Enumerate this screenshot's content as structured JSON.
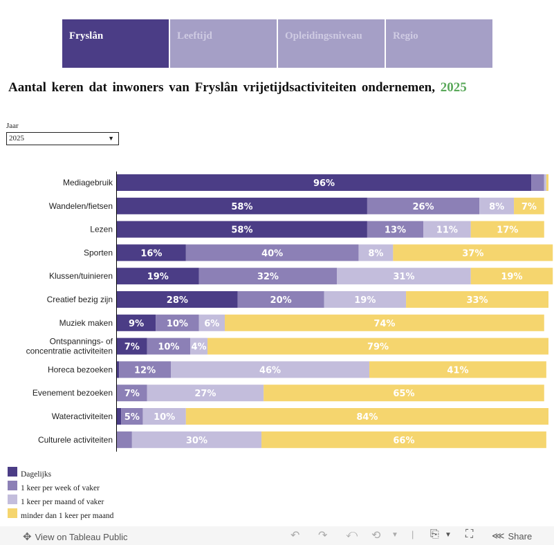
{
  "tabs": [
    {
      "label": "Fryslân",
      "active": true
    },
    {
      "label": "Leeftijd",
      "active": false
    },
    {
      "label": "Opleidingsniveau",
      "active": false
    },
    {
      "label": "Regio",
      "active": false
    }
  ],
  "title": {
    "text": "Aantal keren dat inwoners van Fryslân vrijetijdsactiviteiten ondernemen,",
    "year": "2025"
  },
  "filter": {
    "label": "Jaar",
    "value": "2025"
  },
  "colors": {
    "dagelijks": "#4b3d86",
    "week": "#8c80b6",
    "maand": "#c3bddc",
    "minder": "#f5d56e",
    "year_accent": "#5aa85a"
  },
  "chart_data": {
    "type": "bar",
    "orientation": "horizontal-stacked-100",
    "title": "Aantal keren dat inwoners van Fryslân vrijetijdsactiviteiten ondernemen, 2025",
    "xlabel": "",
    "ylabel": "",
    "xlim": [
      0,
      100
    ],
    "grid": false,
    "legend_position": "bottom-left",
    "categories": [
      "Mediagebruik",
      "Wandelen/fietsen",
      "Lezen",
      "Sporten",
      "Klussen/tuinieren",
      "Creatief bezig zijn",
      "Muziek maken",
      "Ontspannings- of concentratie activiteiten",
      "Horeca bezoeken",
      "Evenement bezoeken",
      "Wateractiviteiten",
      "Culturele activiteiten"
    ],
    "series": [
      {
        "name": "Dagelijks",
        "color_key": "dagelijks",
        "values": [
          96,
          58,
          58,
          16,
          19,
          28,
          9,
          7,
          0.5,
          0,
          1,
          0
        ]
      },
      {
        "name": "1 keer per week of vaker",
        "color_key": "week",
        "values": [
          3,
          26,
          13,
          40,
          32,
          20,
          10,
          10,
          12,
          7,
          5,
          3.5
        ]
      },
      {
        "name": "1 keer per maand of vaker",
        "color_key": "maand",
        "values": [
          0.5,
          8,
          11,
          8,
          31,
          19,
          6,
          4,
          46,
          27,
          10,
          30
        ]
      },
      {
        "name": "minder dan 1 keer per maand",
        "color_key": "minder",
        "values": [
          0.5,
          7,
          17,
          37,
          19,
          33,
          74,
          79,
          41,
          65,
          84,
          66
        ]
      }
    ],
    "label_min_value": 4
  },
  "footer": {
    "view_label": "View on Tableau Public",
    "share_label": "Share"
  }
}
